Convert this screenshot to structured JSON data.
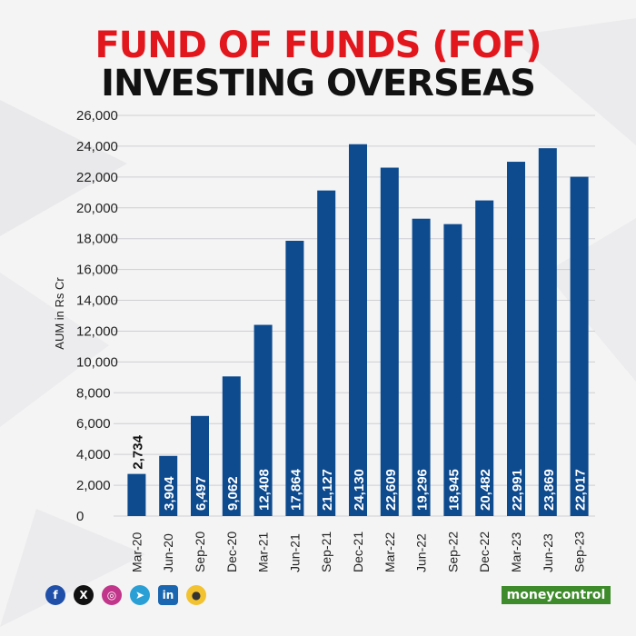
{
  "header": {
    "title_line1": "FUND OF FUNDS (FOF)",
    "title_line2": "INVESTING OVERSEAS"
  },
  "chart_data": {
    "type": "bar",
    "ylabel": "AUM in Rs Cr",
    "xlabel": "",
    "ylim": [
      0,
      26000
    ],
    "yticks": [
      0,
      2000,
      4000,
      6000,
      8000,
      10000,
      12000,
      14000,
      16000,
      18000,
      20000,
      22000,
      24000,
      26000
    ],
    "ytick_labels": [
      "0",
      "2,000",
      "4,000",
      "6,000",
      "8,000",
      "10,000",
      "12,000",
      "14,000",
      "16,000",
      "18,000",
      "20,000",
      "22,000",
      "24,000",
      "26,000"
    ],
    "categories": [
      "Mar-20",
      "Jun-20",
      "Sep-20",
      "Dec-20",
      "Mar-21",
      "Jun-21",
      "Sep-21",
      "Dec-21",
      "Mar-22",
      "Jun-22",
      "Sep-22",
      "Dec-22",
      "Mar-23",
      "Jun-23",
      "Sep-23"
    ],
    "values": [
      2734,
      3904,
      6497,
      9062,
      12408,
      17864,
      21127,
      24130,
      22609,
      19296,
      18945,
      20482,
      22991,
      23869,
      22017
    ],
    "value_labels": [
      "2,734",
      "3,904",
      "6,497",
      "9,062",
      "12,408",
      "17,864",
      "21,127",
      "24,130",
      "22,609",
      "19,296",
      "18,945",
      "20,482",
      "22,991",
      "23,869",
      "22,017"
    ],
    "grid": true,
    "bar_color": "#0d4a8e"
  },
  "footer": {
    "brand": "moneycontrol",
    "social_icons": [
      "facebook-icon",
      "x-icon",
      "instagram-icon",
      "telegram-icon",
      "linkedin-icon",
      "koo-icon"
    ]
  }
}
